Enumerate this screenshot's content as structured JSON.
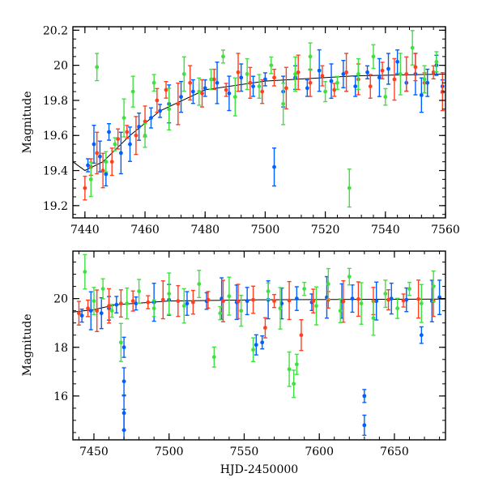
{
  "chart_data": [
    {
      "id": "top",
      "type": "scatter",
      "xlabel": "",
      "ylabel": "Magnitude",
      "xlim": [
        7436,
        7560
      ],
      "ylim": [
        20.22,
        19.13
      ],
      "y_inverted": true,
      "xticks": [
        7440,
        7460,
        7480,
        7500,
        7520,
        7540,
        7560
      ],
      "xtick_labels": [
        "7440",
        "7460",
        "7480",
        "7500",
        "7520",
        "7540",
        "7560"
      ],
      "yticks": [
        19.2,
        19.4,
        19.6,
        19.8,
        20,
        20.2
      ],
      "ytick_labels": [
        "19.2",
        "19.4",
        "19.6",
        "19.8",
        "20",
        "20.2"
      ],
      "error_bars": true,
      "model_curve": [
        [
          7436,
          19.45
        ],
        [
          7440,
          19.4
        ],
        [
          7446,
          19.45
        ],
        [
          7455,
          19.6
        ],
        [
          7465,
          19.74
        ],
        [
          7480,
          19.86
        ],
        [
          7500,
          19.91
        ],
        [
          7530,
          19.94
        ],
        [
          7560,
          19.95
        ]
      ],
      "series": [
        {
          "color": "#0060ff",
          "points": [
            [
              7441,
              19.43
            ],
            [
              7443,
              19.55
            ],
            [
              7445,
              19.48
            ],
            [
              7447,
              19.38
            ],
            [
              7448,
              19.62
            ],
            [
              7452,
              19.5
            ],
            [
              7455,
              19.55
            ],
            [
              7458,
              19.65
            ],
            [
              7462,
              19.7
            ],
            [
              7465,
              19.74
            ],
            [
              7468,
              19.78
            ],
            [
              7472,
              19.82
            ],
            [
              7476,
              19.85
            ],
            [
              7480,
              19.87
            ],
            [
              7484,
              19.9
            ],
            [
              7488,
              19.84
            ],
            [
              7492,
              19.93
            ],
            [
              7496,
              19.88
            ],
            [
              7500,
              19.92
            ],
            [
              7503,
              19.42
            ],
            [
              7506,
              19.85
            ],
            [
              7510,
              19.93
            ],
            [
              7514,
              19.87
            ],
            [
              7518,
              19.97
            ],
            [
              7522,
              19.91
            ],
            [
              7526,
              19.95
            ],
            [
              7530,
              19.88
            ],
            [
              7534,
              19.96
            ],
            [
              7538,
              19.93
            ],
            [
              7541,
              19.98
            ],
            [
              7544,
              20.02
            ],
            [
              7547,
              19.9
            ],
            [
              7550,
              19.95
            ],
            [
              7552,
              19.83
            ],
            [
              7554,
              19.9
            ],
            [
              7557,
              20.0
            ],
            [
              7559,
              19.88
            ]
          ]
        },
        {
          "color": "#ff4020",
          "points": [
            [
              7440,
              19.3
            ],
            [
              7442,
              19.42
            ],
            [
              7444,
              19.5
            ],
            [
              7446,
              19.4
            ],
            [
              7449,
              19.45
            ],
            [
              7451,
              19.58
            ],
            [
              7454,
              19.62
            ],
            [
              7457,
              19.6
            ],
            [
              7460,
              19.68
            ],
            [
              7464,
              19.8
            ],
            [
              7467,
              19.86
            ],
            [
              7471,
              19.78
            ],
            [
              7475,
              19.9
            ],
            [
              7479,
              19.84
            ],
            [
              7483,
              19.92
            ],
            [
              7487,
              19.86
            ],
            [
              7491,
              19.96
            ],
            [
              7495,
              19.9
            ],
            [
              7499,
              19.85
            ],
            [
              7503,
              19.93
            ],
            [
              7507,
              19.87
            ],
            [
              7511,
              19.96
            ],
            [
              7515,
              19.9
            ],
            [
              7519,
              19.94
            ],
            [
              7523,
              19.86
            ],
            [
              7527,
              19.96
            ],
            [
              7531,
              19.92
            ],
            [
              7535,
              19.88
            ],
            [
              7539,
              19.97
            ],
            [
              7543,
              19.92
            ],
            [
              7547,
              19.95
            ],
            [
              7550,
              19.99
            ],
            [
              7553,
              19.9
            ],
            [
              7556,
              19.96
            ],
            [
              7559,
              19.85
            ]
          ]
        },
        {
          "color": "#40e040",
          "points": [
            [
              7442,
              19.35
            ],
            [
              7444,
              19.99
            ],
            [
              7447,
              19.45
            ],
            [
              7450,
              19.55
            ],
            [
              7453,
              19.7
            ],
            [
              7456,
              19.85
            ],
            [
              7460,
              19.6
            ],
            [
              7463,
              19.9
            ],
            [
              7468,
              19.75
            ],
            [
              7473,
              19.95
            ],
            [
              7478,
              19.85
            ],
            [
              7482,
              19.92
            ],
            [
              7486,
              20.05
            ],
            [
              7490,
              19.82
            ],
            [
              7494,
              19.95
            ],
            [
              7498,
              19.88
            ],
            [
              7502,
              20.0
            ],
            [
              7506,
              19.78
            ],
            [
              7510,
              19.95
            ],
            [
              7515,
              20.05
            ],
            [
              7520,
              19.85
            ],
            [
              7524,
              19.9
            ],
            [
              7528,
              19.3
            ],
            [
              7531,
              19.95
            ],
            [
              7536,
              20.05
            ],
            [
              7540,
              19.82
            ],
            [
              7545,
              19.95
            ],
            [
              7549,
              20.1
            ],
            [
              7553,
              19.92
            ],
            [
              7557,
              20.02
            ]
          ]
        }
      ]
    },
    {
      "id": "bottom",
      "type": "scatter",
      "xlabel": "HJD-2450000",
      "ylabel": "Magnitude",
      "xlim": [
        7436,
        7684
      ],
      "ylim": [
        21.95,
        14.2
      ],
      "y_inverted": true,
      "xticks": [
        7450,
        7500,
        7550,
        7600,
        7650
      ],
      "xtick_labels": [
        "7450",
        "7500",
        "7550",
        "7600",
        "7650"
      ],
      "yticks": [
        16,
        18,
        20
      ],
      "ytick_labels": [
        "16",
        "18",
        "20"
      ],
      "error_bars": true,
      "model_curve": [
        [
          7436,
          19.45
        ],
        [
          7450,
          19.55
        ],
        [
          7465,
          19.75
        ],
        [
          7500,
          19.9
        ],
        [
          7560,
          19.95
        ],
        [
          7684,
          19.98
        ]
      ],
      "series": [
        {
          "color": "#0060ff",
          "points": [
            [
              7442,
              19.3
            ],
            [
              7448,
              19.5
            ],
            [
              7455,
              19.4
            ],
            [
              7460,
              19.6
            ],
            [
              7465,
              19.75
            ],
            [
              7470,
              14.6
            ],
            [
              7470,
              15.3
            ],
            [
              7470,
              16.6
            ],
            [
              7470,
              18.0
            ],
            [
              7478,
              19.8
            ],
            [
              7490,
              19.85
            ],
            [
              7500,
              19.95
            ],
            [
              7512,
              19.8
            ],
            [
              7525,
              19.9
            ],
            [
              7535,
              20.0
            ],
            [
              7545,
              19.85
            ],
            [
              7552,
              19.9
            ],
            [
              7558,
              18.1
            ],
            [
              7562,
              18.2
            ],
            [
              7566,
              19.95
            ],
            [
              7575,
              19.8
            ],
            [
              7585,
              20.0
            ],
            [
              7595,
              19.85
            ],
            [
              7605,
              20.05
            ],
            [
              7615,
              19.9
            ],
            [
              7622,
              20.0
            ],
            [
              7630,
              14.8
            ],
            [
              7630,
              16.0
            ],
            [
              7638,
              19.9
            ],
            [
              7648,
              20.0
            ],
            [
              7658,
              19.95
            ],
            [
              7668,
              18.5
            ],
            [
              7675,
              19.9
            ],
            [
              7680,
              20.05
            ]
          ]
        },
        {
          "color": "#ff4020",
          "points": [
            [
              7440,
              19.4
            ],
            [
              7446,
              19.6
            ],
            [
              7452,
              19.5
            ],
            [
              7460,
              19.7
            ],
            [
              7468,
              19.8
            ],
            [
              7476,
              19.9
            ],
            [
              7486,
              19.85
            ],
            [
              7496,
              19.95
            ],
            [
              7506,
              19.9
            ],
            [
              7516,
              19.85
            ],
            [
              7526,
              19.95
            ],
            [
              7536,
              19.9
            ],
            [
              7546,
              19.88
            ],
            [
              7556,
              19.95
            ],
            [
              7564,
              18.8
            ],
            [
              7570,
              19.9
            ],
            [
              7580,
              19.92
            ],
            [
              7588,
              18.5
            ],
            [
              7596,
              19.9
            ],
            [
              7606,
              19.95
            ],
            [
              7616,
              19.88
            ],
            [
              7626,
              19.98
            ],
            [
              7636,
              19.9
            ],
            [
              7646,
              19.95
            ],
            [
              7656,
              19.92
            ],
            [
              7666,
              19.98
            ],
            [
              7676,
              19.9
            ]
          ]
        },
        {
          "color": "#40e040",
          "points": [
            [
              7444,
              21.1
            ],
            [
              7450,
              19.9
            ],
            [
              7456,
              20.4
            ],
            [
              7462,
              19.5
            ],
            [
              7468,
              18.2
            ],
            [
              7472,
              19.8
            ],
            [
              7480,
              20.3
            ],
            [
              7490,
              19.6
            ],
            [
              7500,
              20.2
            ],
            [
              7510,
              19.7
            ],
            [
              7520,
              20.6
            ],
            [
              7530,
              17.6
            ],
            [
              7534,
              19.4
            ],
            [
              7540,
              20.1
            ],
            [
              7548,
              19.5
            ],
            [
              7556,
              17.9
            ],
            [
              7566,
              20.3
            ],
            [
              7574,
              19.6
            ],
            [
              7580,
              17.1
            ],
            [
              7583,
              16.5
            ],
            [
              7585,
              17.3
            ],
            [
              7590,
              20.4
            ],
            [
              7598,
              19.7
            ],
            [
              7606,
              20.6
            ],
            [
              7614,
              19.5
            ],
            [
              7620,
              20.9
            ],
            [
              7628,
              19.8
            ],
            [
              7636,
              19.2
            ],
            [
              7644,
              20.2
            ],
            [
              7652,
              19.6
            ],
            [
              7660,
              20.4
            ],
            [
              7668,
              19.8
            ],
            [
              7676,
              20.5
            ]
          ]
        }
      ]
    }
  ]
}
